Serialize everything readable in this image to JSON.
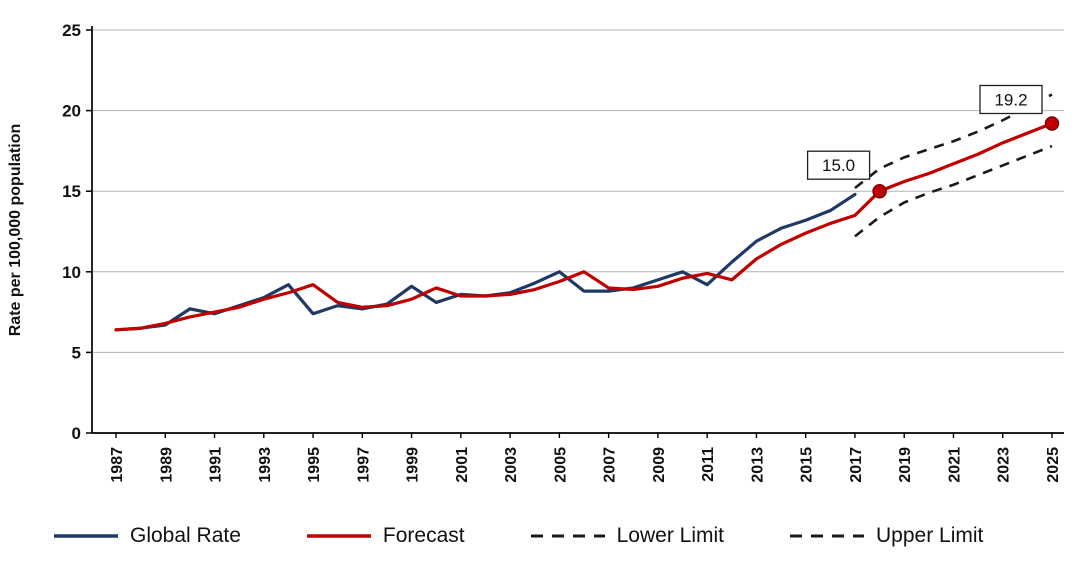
{
  "chart_data": {
    "type": "line",
    "title": "",
    "xlabel": "",
    "ylabel": "Rate per 100,000 population",
    "ylim": [
      0,
      25
    ],
    "xlim": [
      1987,
      2025
    ],
    "yticks": [
      0,
      5,
      10,
      15,
      20,
      25
    ],
    "xticks": [
      1987,
      1989,
      1991,
      1993,
      1995,
      1997,
      1999,
      2001,
      2003,
      2005,
      2007,
      2009,
      2011,
      2013,
      2015,
      2017,
      2019,
      2021,
      2023,
      2025
    ],
    "grid": true,
    "legend_position": "bottom",
    "series": [
      {
        "name": "Global Rate",
        "color": "#1F3864",
        "style": "solid",
        "x": [
          1987,
          1988,
          1989,
          1990,
          1991,
          1992,
          1993,
          1994,
          1995,
          1996,
          1997,
          1998,
          1999,
          2000,
          2001,
          2002,
          2003,
          2004,
          2005,
          2006,
          2007,
          2008,
          2009,
          2010,
          2011,
          2012,
          2013,
          2014,
          2015,
          2016,
          2017
        ],
        "values": [
          6.4,
          6.5,
          6.7,
          7.7,
          7.4,
          7.9,
          8.4,
          9.2,
          7.4,
          7.9,
          7.7,
          8.0,
          9.1,
          8.1,
          8.6,
          8.5,
          8.7,
          9.3,
          10.0,
          8.8,
          8.8,
          9.0,
          9.5,
          10.0,
          9.2,
          10.6,
          11.9,
          12.7,
          13.2,
          13.8,
          14.8
        ]
      },
      {
        "name": "Forecast",
        "color": "#C00000",
        "style": "solid",
        "x": [
          1987,
          1988,
          1989,
          1990,
          1991,
          1992,
          1993,
          1994,
          1995,
          1996,
          1997,
          1998,
          1999,
          2000,
          2001,
          2002,
          2003,
          2004,
          2005,
          2006,
          2007,
          2008,
          2009,
          2010,
          2011,
          2012,
          2013,
          2014,
          2015,
          2016,
          2017,
          2018,
          2019,
          2020,
          2021,
          2022,
          2023,
          2024,
          2025
        ],
        "values": [
          6.4,
          6.5,
          6.8,
          7.2,
          7.5,
          7.8,
          8.3,
          8.7,
          9.2,
          8.1,
          7.8,
          7.9,
          8.3,
          9.0,
          8.5,
          8.5,
          8.6,
          8.9,
          9.4,
          10.0,
          9.0,
          8.9,
          9.1,
          9.6,
          9.9,
          9.5,
          10.8,
          11.7,
          12.4,
          13.0,
          13.5,
          15.0,
          15.6,
          16.1,
          16.7,
          17.3,
          18.0,
          18.6,
          19.2
        ]
      },
      {
        "name": "Lower Limit",
        "color": "#1a1a1a",
        "style": "dashed",
        "x": [
          2017,
          2018,
          2019,
          2020,
          2021,
          2022,
          2023,
          2024,
          2025
        ],
        "values": [
          12.2,
          13.4,
          14.3,
          14.9,
          15.4,
          16.0,
          16.6,
          17.2,
          17.8
        ]
      },
      {
        "name": "Upper Limit",
        "color": "#1a1a1a",
        "style": "dashed",
        "x": [
          2017,
          2018,
          2019,
          2020,
          2021,
          2022,
          2023,
          2024,
          2025
        ],
        "values": [
          15.2,
          16.4,
          17.1,
          17.6,
          18.1,
          18.7,
          19.4,
          20.2,
          21.0
        ]
      }
    ],
    "annotations": [
      {
        "x": 2018,
        "y": 15.0,
        "label": "15.0",
        "box_dx": -72,
        "box_dy": -40
      },
      {
        "x": 2025,
        "y": 19.2,
        "label": "19.2",
        "box_dx": -72,
        "box_dy": -38
      }
    ],
    "marker_color": "#C00000",
    "marker_edge": "#7f0000"
  }
}
